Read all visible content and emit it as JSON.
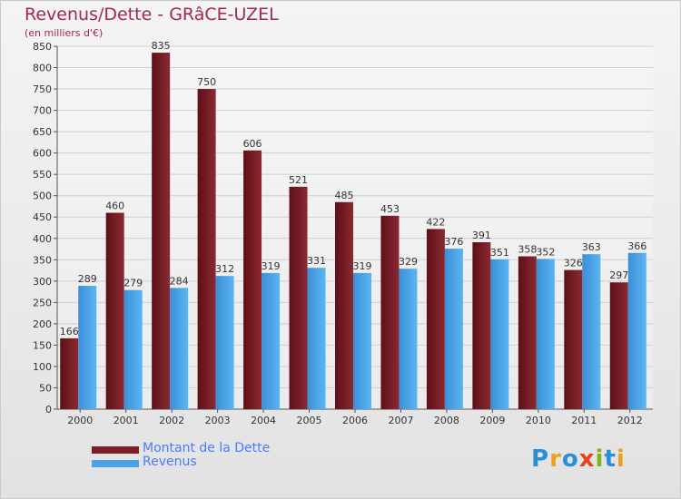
{
  "chart_data": {
    "type": "bar",
    "title": "Revenus/Dette - GRâCE-UZEL",
    "subtitle": "(en milliers d'€)",
    "categories": [
      "2000",
      "2001",
      "2002",
      "2003",
      "2004",
      "2005",
      "2006",
      "2007",
      "2008",
      "2009",
      "2010",
      "2011",
      "2012"
    ],
    "series": [
      {
        "name": "Montant de la Dette",
        "values": [
          166,
          460,
          835,
          750,
          606,
          521,
          485,
          453,
          422,
          391,
          358,
          326,
          297
        ],
        "color": "#7a1f27"
      },
      {
        "name": "Revenus",
        "values": [
          289,
          279,
          284,
          312,
          319,
          331,
          319,
          329,
          376,
          351,
          352,
          363,
          366
        ],
        "color": "#4aa3e8"
      }
    ],
    "ylim": [
      0,
      850
    ],
    "ytick_step": 50,
    "grid": true,
    "legend_position": "bottom-left"
  },
  "logo": {
    "letters": [
      {
        "char": "P",
        "color": "#2b8fd8"
      },
      {
        "char": "r",
        "color": "#e8a21c"
      },
      {
        "char": "o",
        "color": "#2b8fd8"
      },
      {
        "char": "x",
        "color": "#e8431c"
      },
      {
        "char": "i",
        "color": "#7ab51d"
      },
      {
        "char": "t",
        "color": "#2b8fd8"
      },
      {
        "char": "i",
        "color": "#e8a21c"
      }
    ]
  }
}
